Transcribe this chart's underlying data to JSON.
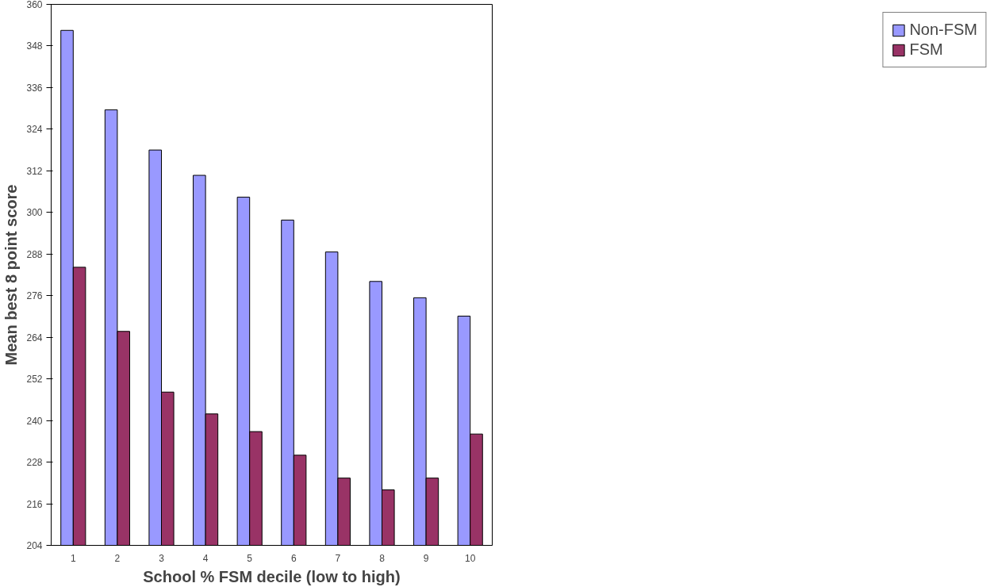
{
  "chart_data": {
    "type": "bar",
    "xlabel": "School % FSM decile (low to high)",
    "ylabel": "Mean best 8 point score",
    "categories": [
      "1",
      "2",
      "3",
      "4",
      "5",
      "6",
      "7",
      "8",
      "9",
      "10"
    ],
    "series": [
      {
        "name": "Non-FSM",
        "color": "#9999ff",
        "values": [
          352.5,
          329.6,
          318,
          310.7,
          304.4,
          297.8,
          288.6,
          280.1,
          275.4,
          270.1
        ]
      },
      {
        "name": "FSM",
        "color": "#993366",
        "values": [
          284.2,
          265.7,
          248.2,
          241.9,
          236.8,
          230,
          223.4,
          220,
          223.4,
          236.1
        ]
      }
    ],
    "ylim": [
      204,
      360
    ],
    "yticks": [
      204,
      216,
      228,
      240,
      252,
      264,
      276,
      288,
      300,
      312,
      324,
      336,
      348,
      360
    ],
    "grid": false,
    "legend": "right"
  }
}
